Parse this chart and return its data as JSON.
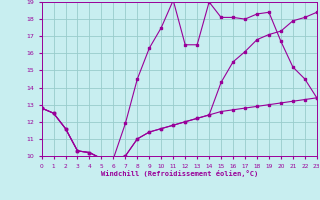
{
  "xlabel": "Windchill (Refroidissement éolien,°C)",
  "background_color": "#c8eef0",
  "line_color": "#990099",
  "grid_color": "#99cccc",
  "xlim": [
    0,
    23
  ],
  "ylim": [
    10,
    19
  ],
  "xticks": [
    0,
    1,
    2,
    3,
    4,
    5,
    6,
    7,
    8,
    9,
    10,
    11,
    12,
    13,
    14,
    15,
    16,
    17,
    18,
    19,
    20,
    21,
    22,
    23
  ],
  "yticks": [
    10,
    11,
    12,
    13,
    14,
    15,
    16,
    17,
    18,
    19
  ],
  "line1_x": [
    0,
    1,
    2,
    3,
    4,
    5,
    6,
    7,
    8,
    9,
    10,
    11,
    12,
    13,
    14,
    15,
    16,
    17,
    18,
    19,
    20,
    21,
    22,
    23
  ],
  "line1_y": [
    12.8,
    12.5,
    11.6,
    10.3,
    10.2,
    9.85,
    9.85,
    10.0,
    11.0,
    11.4,
    11.6,
    11.8,
    12.0,
    12.2,
    12.4,
    12.6,
    12.7,
    12.8,
    12.9,
    13.0,
    13.1,
    13.2,
    13.3,
    13.4
  ],
  "line2_x": [
    0,
    1,
    2,
    3,
    4,
    5,
    6,
    7,
    8,
    9,
    10,
    11,
    12,
    13,
    14,
    15,
    16,
    17,
    18,
    19,
    20,
    21,
    22,
    23
  ],
  "line2_y": [
    12.8,
    12.5,
    11.6,
    10.3,
    10.2,
    9.85,
    9.85,
    11.9,
    14.5,
    16.3,
    17.5,
    19.1,
    16.5,
    16.5,
    19.0,
    18.1,
    18.1,
    18.0,
    18.3,
    18.4,
    16.7,
    15.2,
    14.5,
    13.4
  ],
  "line3_x": [
    0,
    1,
    2,
    3,
    4,
    5,
    6,
    7,
    8,
    9,
    10,
    11,
    12,
    13,
    14,
    15,
    16,
    17,
    18,
    19,
    20,
    21,
    22,
    23
  ],
  "line3_y": [
    12.8,
    12.5,
    11.6,
    10.3,
    10.2,
    9.85,
    9.85,
    10.0,
    11.0,
    11.4,
    11.6,
    11.8,
    12.0,
    12.2,
    12.4,
    14.3,
    15.5,
    16.1,
    16.8,
    17.1,
    17.3,
    17.9,
    18.1,
    18.4
  ]
}
